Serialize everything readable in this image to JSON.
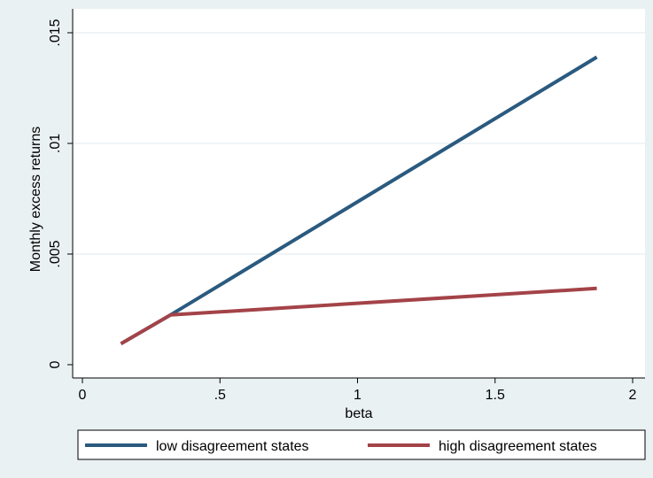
{
  "chart_data": {
    "type": "line",
    "title": "",
    "xlabel": "beta",
    "ylabel": "Monthly excess returns",
    "xlim": [
      0,
      2
    ],
    "ylim": [
      0,
      0.015
    ],
    "x_ticks": [
      {
        "value": 0,
        "label": "0"
      },
      {
        "value": 0.5,
        "label": ".5"
      },
      {
        "value": 1,
        "label": "1"
      },
      {
        "value": 1.5,
        "label": "1.5"
      },
      {
        "value": 2,
        "label": "2"
      }
    ],
    "y_ticks": [
      {
        "value": 0,
        "label": "0"
      },
      {
        "value": 0.005,
        "label": ".005"
      },
      {
        "value": 0.01,
        "label": ".01"
      },
      {
        "value": 0.015,
        "label": ".015"
      }
    ],
    "grid": true,
    "legend_position": "bottom",
    "series": [
      {
        "name": "low disagreement states",
        "color": "#2a5a7f",
        "points": [
          [
            0.14,
            0.00095
          ],
          [
            0.32,
            0.00225
          ],
          [
            1.87,
            0.0139
          ]
        ]
      },
      {
        "name": "high disagreement states",
        "color": "#a34348",
        "points": [
          [
            0.14,
            0.00095
          ],
          [
            0.32,
            0.00225
          ],
          [
            1.87,
            0.00345
          ]
        ]
      }
    ]
  }
}
